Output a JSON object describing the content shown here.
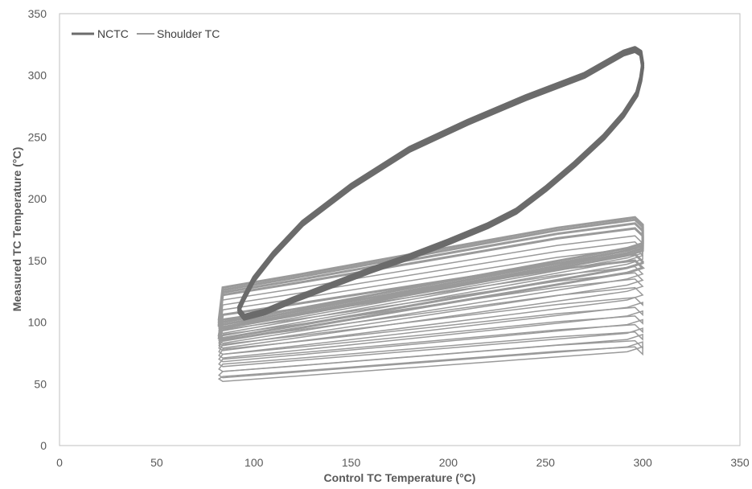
{
  "chart_data": {
    "type": "line",
    "xlabel": "Control TC Temperature (°C)",
    "ylabel": "Measured TC Temperature (°C)",
    "xlim": [
      0,
      350
    ],
    "ylim": [
      0,
      350
    ],
    "x_ticks": [
      0,
      50,
      100,
      150,
      200,
      250,
      300,
      350
    ],
    "y_ticks": [
      0,
      50,
      100,
      150,
      200,
      250,
      300,
      350
    ],
    "x_tick_labels": [
      "0",
      "50",
      "100",
      "150",
      "200",
      "250",
      "300",
      "350"
    ],
    "y_tick_labels": [
      "0",
      "50",
      "100",
      "150",
      "200",
      "250",
      "300",
      "350"
    ],
    "grid": false,
    "legend_position": "top-left",
    "series": [
      {
        "name": "NCTC",
        "color": "#6b6b6b",
        "width": 4,
        "x": [
          92,
          95,
          100,
          110,
          125,
          150,
          180,
          210,
          240,
          270,
          290,
          296,
          299,
          300,
          299,
          297,
          290,
          280,
          265,
          250,
          235,
          220,
          200,
          180,
          160,
          140,
          120,
          105,
          95,
          92
        ],
        "y": [
          110,
          120,
          135,
          155,
          180,
          210,
          240,
          262,
          282,
          300,
          318,
          321,
          318,
          308,
          297,
          285,
          268,
          250,
          228,
          208,
          190,
          178,
          165,
          153,
          142,
          130,
          118,
          108,
          104,
          110
        ]
      },
      {
        "name": "Shoulder TC",
        "color": "#9a9a9a",
        "width": 1.5,
        "loops": [
          {
            "y_start": 128,
            "y_end_top": 185,
            "y_bottom_left": 100,
            "y_bottom_right": 160
          },
          {
            "y_start": 126,
            "y_end_top": 183,
            "y_bottom_left": 98,
            "y_bottom_right": 158
          },
          {
            "y_start": 124,
            "y_end_top": 180,
            "y_bottom_left": 96,
            "y_bottom_right": 156
          },
          {
            "y_start": 122,
            "y_end_top": 176,
            "y_bottom_left": 95,
            "y_bottom_right": 154
          },
          {
            "y_start": 118,
            "y_end_top": 170,
            "y_bottom_left": 93,
            "y_bottom_right": 152
          },
          {
            "y_start": 114,
            "y_end_top": 165,
            "y_bottom_left": 91,
            "y_bottom_right": 150
          },
          {
            "y_start": 110,
            "y_end_top": 160,
            "y_bottom_left": 89,
            "y_bottom_right": 147
          },
          {
            "y_start": 106,
            "y_end_top": 155,
            "y_bottom_left": 87,
            "y_bottom_right": 144
          },
          {
            "y_start": 102,
            "y_end_top": 150,
            "y_bottom_left": 85,
            "y_bottom_right": 140
          },
          {
            "y_start": 98,
            "y_end_top": 145,
            "y_bottom_left": 83,
            "y_bottom_right": 135
          },
          {
            "y_start": 94,
            "y_end_top": 140,
            "y_bottom_left": 81,
            "y_bottom_right": 130
          },
          {
            "y_start": 90,
            "y_end_top": 135,
            "y_bottom_left": 79,
            "y_bottom_right": 125
          },
          {
            "y_start": 86,
            "y_end_top": 128,
            "y_bottom_left": 77,
            "y_bottom_right": 118
          },
          {
            "y_start": 82,
            "y_end_top": 120,
            "y_bottom_left": 74,
            "y_bottom_right": 112
          },
          {
            "y_start": 78,
            "y_end_top": 112,
            "y_bottom_left": 71,
            "y_bottom_right": 105
          },
          {
            "y_start": 74,
            "y_end_top": 105,
            "y_bottom_left": 68,
            "y_bottom_right": 98
          },
          {
            "y_start": 70,
            "y_end_top": 98,
            "y_bottom_left": 64,
            "y_bottom_right": 91
          },
          {
            "y_start": 66,
            "y_end_top": 92,
            "y_bottom_left": 60,
            "y_bottom_right": 86
          },
          {
            "y_start": 60,
            "y_end_top": 85,
            "y_bottom_left": 55,
            "y_bottom_right": 80
          },
          {
            "y_start": 56,
            "y_end_top": 80,
            "y_bottom_left": 52,
            "y_bottom_right": 76
          }
        ]
      }
    ]
  }
}
